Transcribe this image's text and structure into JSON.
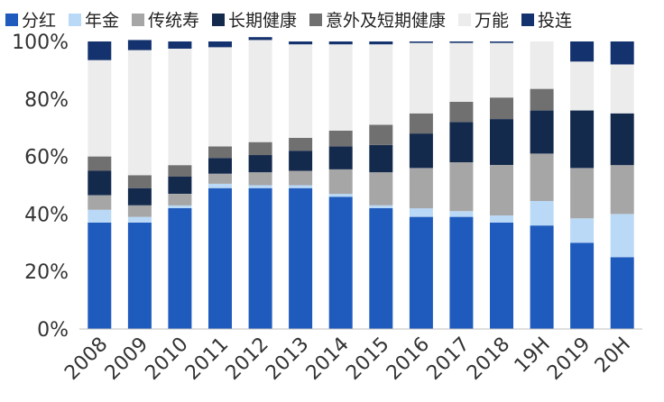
{
  "chart_data": {
    "type": "bar",
    "stacked": true,
    "categories": [
      "2008",
      "2009",
      "2010",
      "2011",
      "2012",
      "2013",
      "2014",
      "2015",
      "2016",
      "2017",
      "2018",
      "19H",
      "2019",
      "20H"
    ],
    "ylim": [
      0,
      100
    ],
    "yticks": [
      "0%",
      "20%",
      "40%",
      "60%",
      "80%",
      "100%"
    ],
    "legend_position": "top",
    "series": [
      {
        "name": "分红",
        "color": "#1f5bbd",
        "values": [
          37,
          37,
          42,
          49,
          49,
          49,
          46,
          42,
          39,
          39,
          37,
          36,
          30,
          25
        ]
      },
      {
        "name": "年金",
        "color": "#bad9f6",
        "values": [
          4.5,
          2,
          1,
          1.5,
          1,
          1,
          1,
          1,
          3,
          2,
          2.5,
          8.5,
          8.5,
          15
        ]
      },
      {
        "name": "传统寿",
        "color": "#a6a6a6",
        "values": [
          5,
          4,
          4,
          3.5,
          4.5,
          5,
          8.5,
          11.5,
          14,
          17,
          17.5,
          16.5,
          17.5,
          17
        ]
      },
      {
        "name": "长期健康",
        "color": "#142a4d",
        "values": [
          8.5,
          6,
          6,
          5.5,
          6,
          7,
          8,
          9.5,
          12,
          14,
          16,
          15,
          20,
          18
        ]
      },
      {
        "name": "意外及短期健康",
        "color": "#707070",
        "values": [
          5,
          4.5,
          4,
          4,
          4.5,
          4.5,
          5.5,
          7,
          7,
          7,
          7.5,
          7.5,
          0,
          0
        ]
      },
      {
        "name": "万能",
        "color": "#ececec",
        "values": [
          33.5,
          43.5,
          40.5,
          34.5,
          35.5,
          32.5,
          30,
          28,
          24.5,
          20.5,
          19,
          16.5,
          17,
          17
        ]
      },
      {
        "name": "投连",
        "color": "#14326e",
        "values": [
          6.5,
          3.5,
          2.5,
          2,
          1,
          1,
          1,
          1,
          0.5,
          0.5,
          0.5,
          0,
          7,
          8
        ]
      }
    ]
  }
}
